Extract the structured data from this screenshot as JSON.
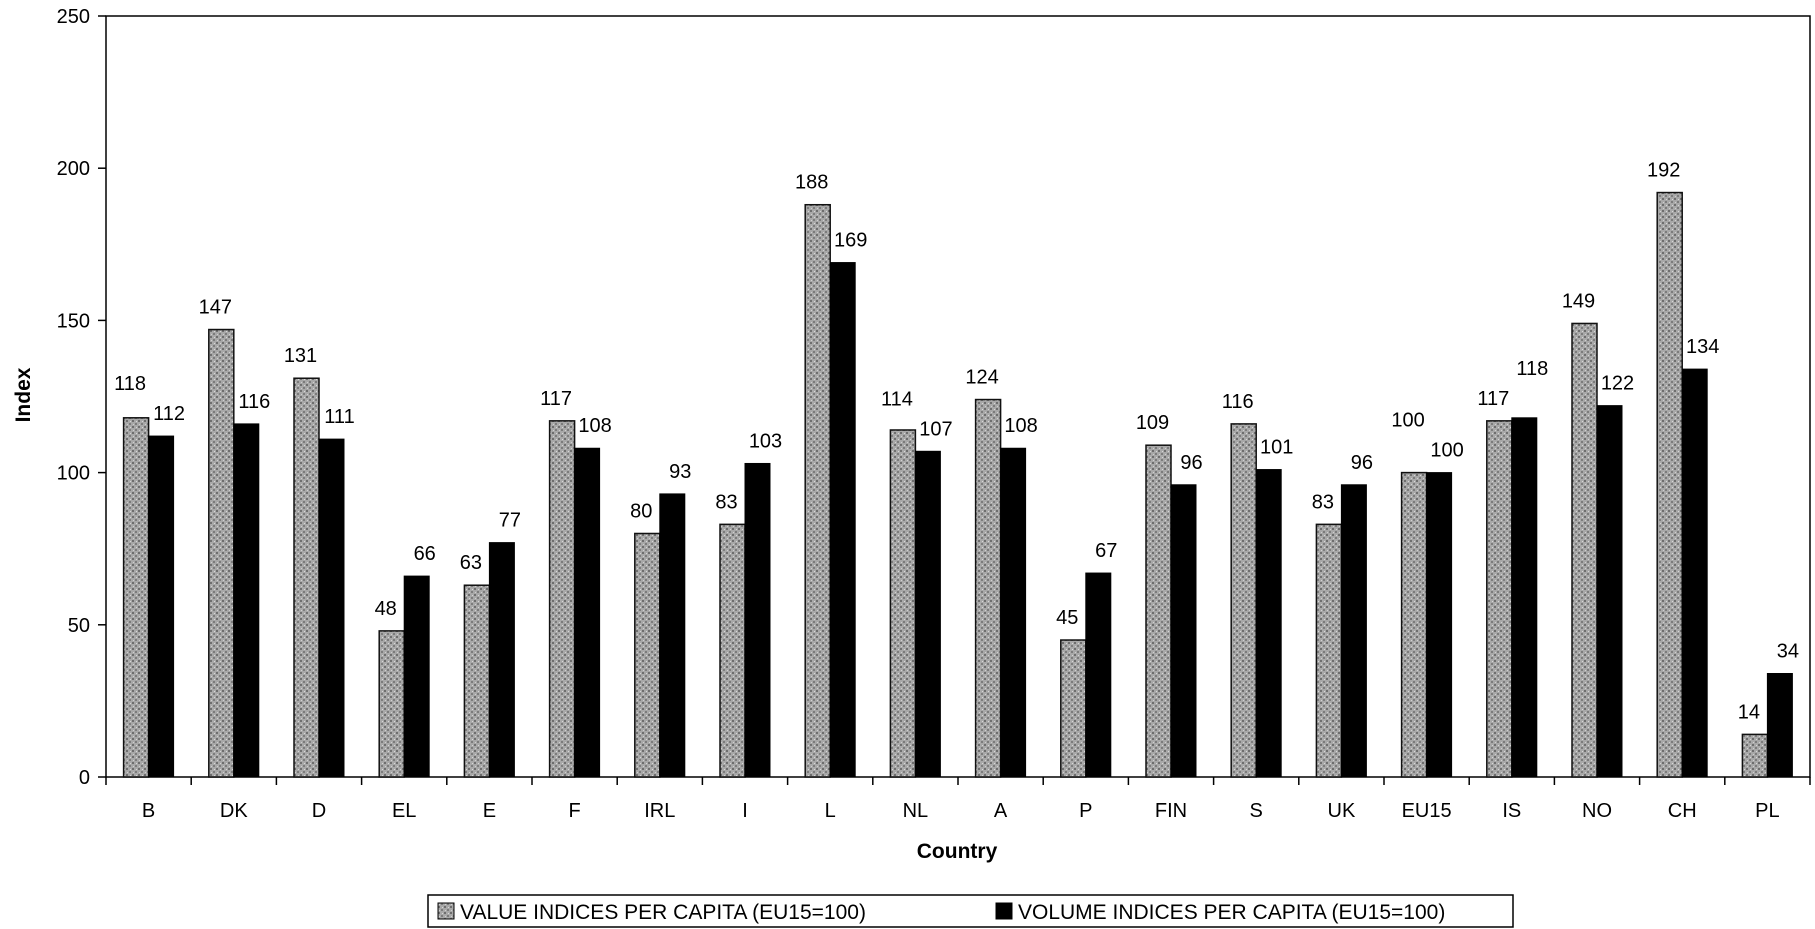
{
  "chart_data": {
    "type": "bar",
    "title": "",
    "xlabel": "Country",
    "ylabel": "Index",
    "ylim": [
      0,
      250
    ],
    "yticks": [
      0,
      50,
      100,
      150,
      200,
      250
    ],
    "grid": false,
    "legend_position": "bottom",
    "categories": [
      "B",
      "DK",
      "D",
      "EL",
      "E",
      "F",
      "IRL",
      "I",
      "L",
      "NL",
      "A",
      "P",
      "FIN",
      "S",
      "UK",
      "EU15",
      "IS",
      "NO",
      "CH",
      "PL"
    ],
    "series": [
      {
        "name": "VALUE INDICES PER CAPITA (EU15=100)",
        "color": "#9a9a9a",
        "values": [
          118,
          147,
          131,
          48,
          63,
          117,
          80,
          83,
          188,
          114,
          124,
          45,
          109,
          116,
          83,
          100,
          117,
          149,
          192,
          14
        ]
      },
      {
        "name": "VOLUME INDICES PER CAPITA (EU15=100)",
        "color": "#000000",
        "values": [
          112,
          116,
          111,
          66,
          77,
          108,
          93,
          103,
          169,
          107,
          108,
          67,
          96,
          101,
          96,
          100,
          118,
          122,
          134,
          34
        ]
      }
    ]
  }
}
